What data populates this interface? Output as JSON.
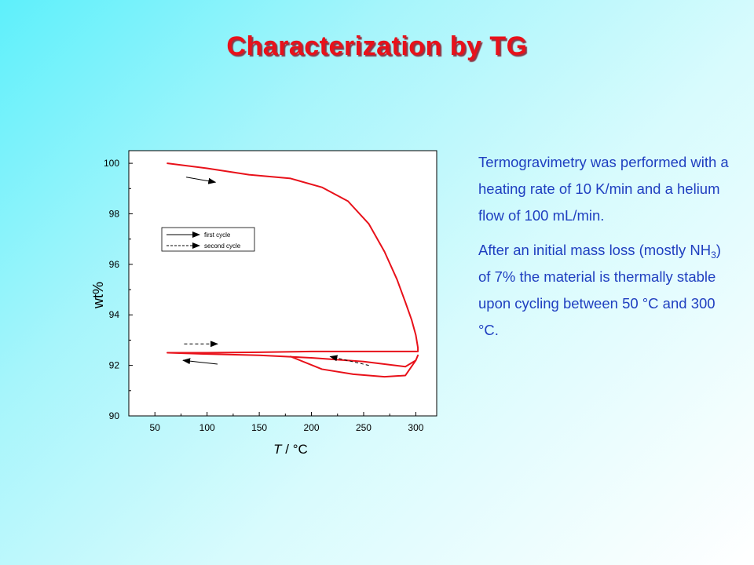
{
  "slide": {
    "title": "Characterization by TG",
    "paragraph1": "Termogravimetry was performed with a heating rate of 10 K/min and a helium flow of 100 mL/min.",
    "paragraph2_before_sub": "After an initial mass loss (mostly NH",
    "paragraph2_sub": "3",
    "paragraph2_after_sub": ") of 7% the material is thermally stable upon cycling between 50 °C and 300 °C."
  },
  "colors": {
    "title": "#e8111a",
    "text": "#1f3fc0",
    "curve": "#e8111a"
  },
  "chart_data": {
    "type": "line",
    "title": "",
    "xlabel_italic": "T",
    "xlabel_rest": " / °C",
    "ylabel": "wt%",
    "xlim": [
      25,
      320
    ],
    "ylim": [
      90,
      100.5
    ],
    "xticks": [
      50,
      100,
      150,
      200,
      250,
      300
    ],
    "yticks": [
      90,
      92,
      94,
      96,
      98,
      100
    ],
    "grid": false,
    "legend_position": "upper-left",
    "legend": [
      {
        "label": "first cycle",
        "style": "solid"
      },
      {
        "label": "second cycle",
        "style": "dashed"
      }
    ],
    "series": [
      {
        "name": "first cycle",
        "style": "solid",
        "x": [
          62,
          100,
          140,
          180,
          210,
          235,
          255,
          270,
          282,
          290,
          296,
          300,
          302,
          302,
          296,
          285,
          250,
          200,
          150,
          100,
          62
        ],
        "y": [
          100,
          99.8,
          99.55,
          99.4,
          99.05,
          98.5,
          97.6,
          96.5,
          95.4,
          94.5,
          93.8,
          93.2,
          92.7,
          92.55,
          92.55,
          92.55,
          92.55,
          92.55,
          92.52,
          92.5,
          92.5
        ]
      },
      {
        "name": "second cycle",
        "style": "dashed",
        "x": [
          62,
          100,
          150,
          200,
          250,
          290,
          300,
          302,
          300,
          290,
          270,
          240,
          210,
          180
        ],
        "y": [
          92.5,
          92.45,
          92.4,
          92.3,
          92.15,
          91.95,
          92.2,
          92.4,
          92.2,
          91.6,
          91.55,
          91.65,
          91.85,
          92.35
        ]
      }
    ],
    "annotations": [
      {
        "label": "arrow-first-heating",
        "style": "solid",
        "from": [
          80,
          99.45
        ],
        "to": [
          108,
          99.25
        ]
      },
      {
        "label": "arrow-first-cooling",
        "style": "solid",
        "from": [
          110,
          92.05
        ],
        "to": [
          77,
          92.2
        ]
      },
      {
        "label": "arrow-second-heating",
        "style": "dashed",
        "from": [
          78,
          92.85
        ],
        "to": [
          110,
          92.85
        ]
      },
      {
        "label": "arrow-second-cooling",
        "style": "dashed",
        "from": [
          255,
          92.0
        ],
        "to": [
          218,
          92.35
        ]
      }
    ]
  }
}
